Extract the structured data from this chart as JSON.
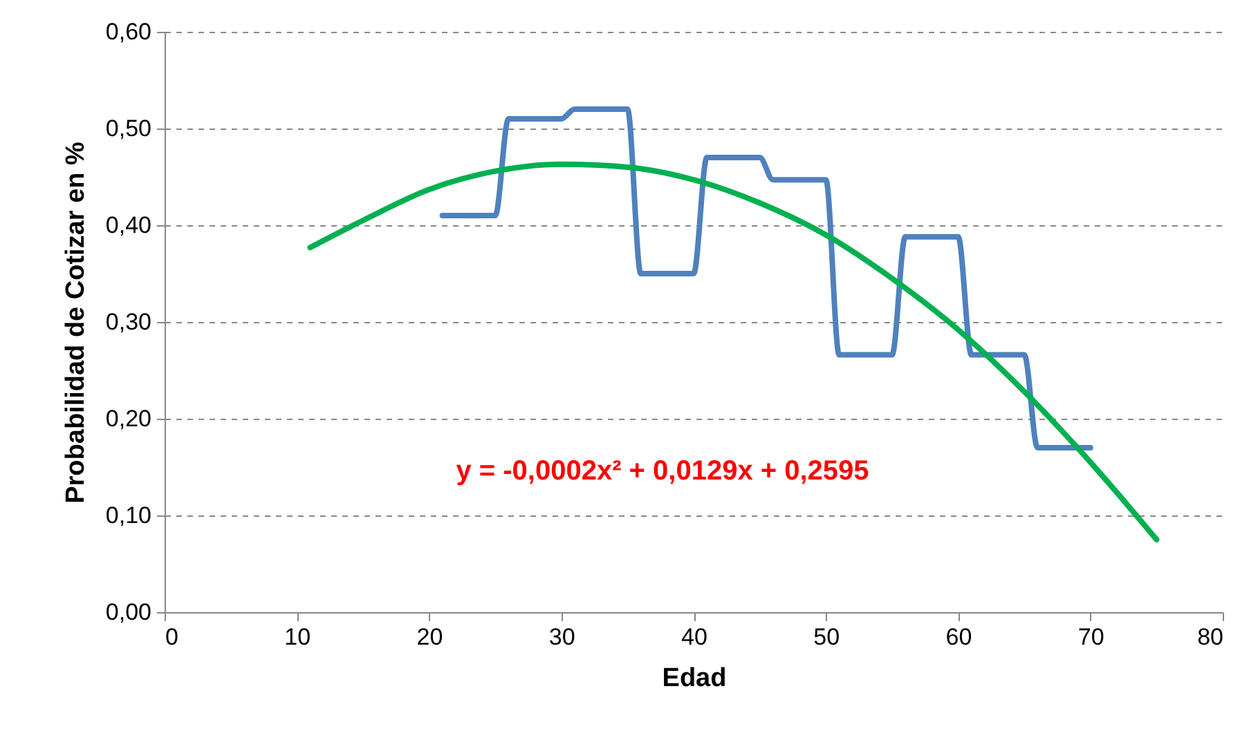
{
  "chart_data": {
    "type": "line",
    "xlabel": "Edad",
    "ylabel": "Probabilidad de Cotizar en %",
    "xlim": [
      0,
      80
    ],
    "xticks": [
      0,
      10,
      20,
      30,
      40,
      50,
      60,
      70,
      80
    ],
    "ylim": [
      0,
      0.6
    ],
    "yticks": [
      {
        "value": 0,
        "label": "0,00"
      },
      {
        "value": 0.1,
        "label": "0,10"
      },
      {
        "value": 0.2,
        "label": "0,20"
      },
      {
        "value": 0.3,
        "label": "0,30"
      },
      {
        "value": 0.4,
        "label": "0,40"
      },
      {
        "value": 0.5,
        "label": "0,50"
      },
      {
        "value": 0.6,
        "label": "0,60"
      }
    ],
    "grid": "y",
    "annotations": [
      "y = -0,0002x² + 0,0129x + 0,2595"
    ],
    "series": [
      {
        "color": "#4f81bd",
        "x": [
          21,
          22,
          23,
          24,
          25,
          26,
          27,
          28,
          29,
          30,
          31,
          32,
          33,
          34,
          35,
          36,
          37,
          38,
          39,
          40,
          41,
          42,
          43,
          44,
          45,
          46,
          47,
          48,
          49,
          50,
          51,
          52,
          53,
          54,
          55,
          56,
          57,
          58,
          59,
          60,
          61,
          62,
          63,
          64,
          65,
          66,
          67,
          68,
          69,
          70
        ],
        "values": [
          0.41,
          0.41,
          0.41,
          0.41,
          0.41,
          0.51,
          0.51,
          0.51,
          0.51,
          0.51,
          0.52,
          0.52,
          0.52,
          0.52,
          0.52,
          0.35,
          0.35,
          0.35,
          0.35,
          0.35,
          0.47,
          0.47,
          0.47,
          0.47,
          0.47,
          0.447,
          0.447,
          0.447,
          0.447,
          0.447,
          0.266,
          0.266,
          0.266,
          0.266,
          0.266,
          0.388,
          0.388,
          0.388,
          0.388,
          0.388,
          0.266,
          0.266,
          0.266,
          0.266,
          0.266,
          0.17,
          0.17,
          0.17,
          0.17,
          0.17
        ]
      },
      {
        "color": "#00b050",
        "x": [
          11,
          15,
          20,
          25,
          30,
          35,
          40,
          45,
          50,
          55,
          60,
          65,
          70,
          75
        ],
        "values": [
          0.377,
          0.405,
          0.437,
          0.456,
          0.463,
          0.46,
          0.447,
          0.423,
          0.39,
          0.345,
          0.292,
          0.228,
          0.155,
          0.075
        ]
      }
    ]
  }
}
